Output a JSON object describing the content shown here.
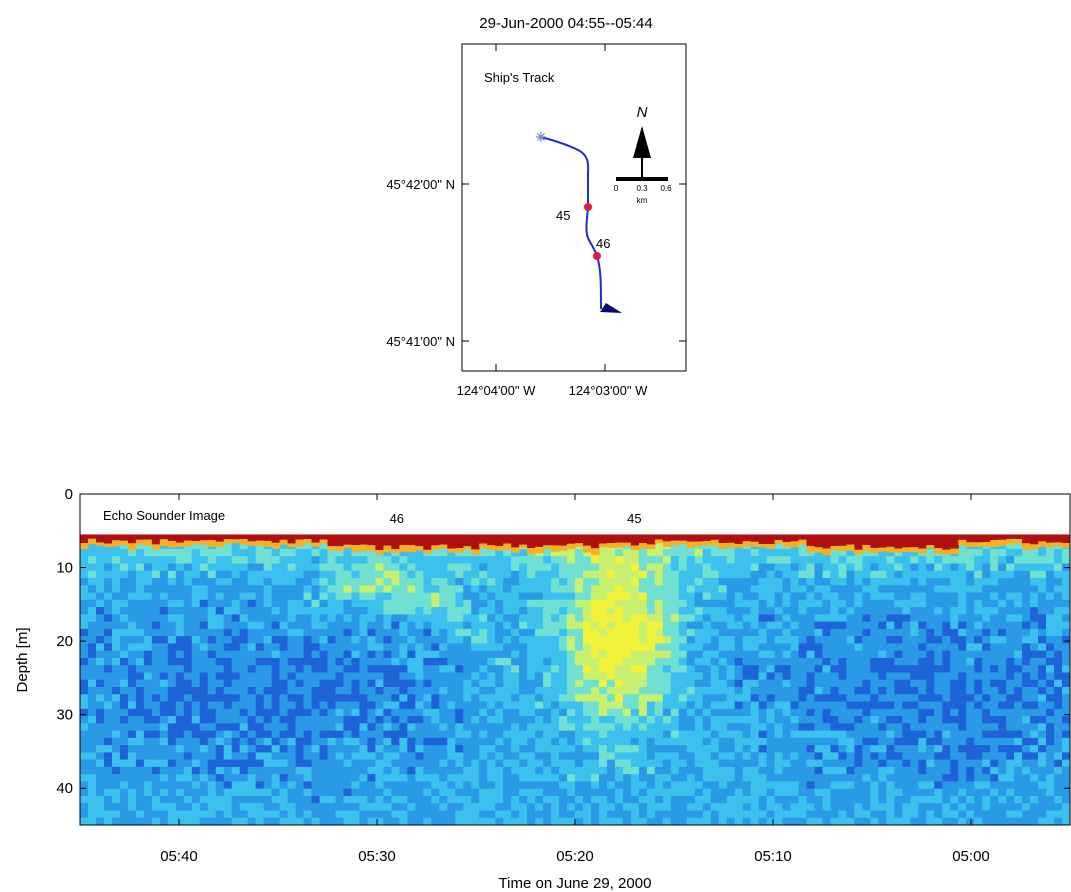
{
  "title": "29-Jun-2000 04:55--05:44",
  "map": {
    "label": "Ship's Track",
    "north_label": "N",
    "lat_ticks": [
      "45°42'00\" N",
      "45°41'00\" N"
    ],
    "lon_ticks": [
      "124°04'00\" W",
      "124°03'00\" W"
    ],
    "scale": {
      "ticks": [
        "0",
        "0.3",
        "0.6"
      ],
      "unit": "km"
    },
    "stations": [
      {
        "label": "45"
      },
      {
        "label": "46"
      }
    ],
    "colors": {
      "track": "#1c2fd6",
      "start_marker": "#7a86c8",
      "station": "#d81e3c",
      "end_marker": "#0a0a6a"
    }
  },
  "chart_data": {
    "type": "heatmap",
    "title": "Echo Sounder Image",
    "xlabel": "Time on June 29, 2000",
    "ylabel": "Depth [m]",
    "x_ticks": [
      "05:40",
      "05:30",
      "05:20",
      "05:10",
      "05:00"
    ],
    "y_ticks": [
      "0",
      "10",
      "20",
      "30",
      "40"
    ],
    "xlim": [
      "05:45",
      "04:55"
    ],
    "ylim": [
      0,
      45
    ],
    "x_reversed": true,
    "y_reversed": true,
    "markers": [
      {
        "label": "46",
        "time": "05:29"
      },
      {
        "label": "45",
        "time": "05:17"
      }
    ],
    "surface_depth_m": 5.5,
    "colormap": [
      "#0d2fb0",
      "#1f63d8",
      "#2a9ae6",
      "#3cc0ee",
      "#6fe0d2",
      "#c8f070",
      "#f3f23a",
      "#f7b020",
      "#e04018",
      "#b01010"
    ]
  }
}
